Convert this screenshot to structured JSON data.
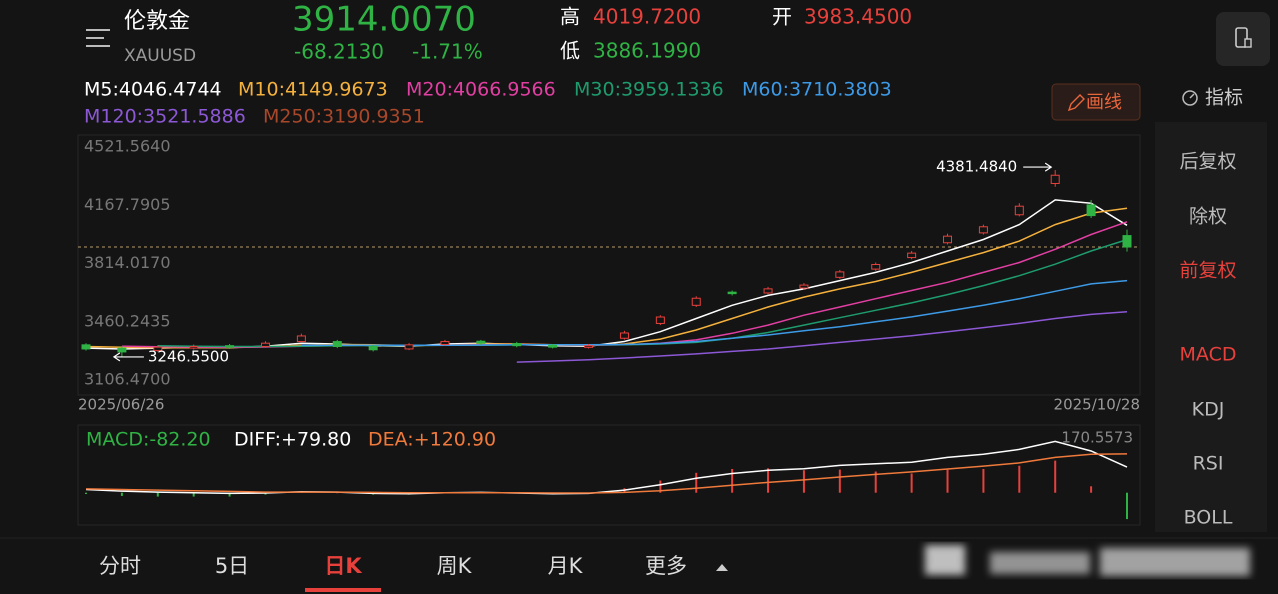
{
  "header": {
    "name": "伦敦金",
    "symbol": "XAUUSD",
    "price": {
      "value": 3914.007,
      "label": "3914.0070"
    },
    "change": "-68.2130",
    "change_pct": "-1.71%",
    "high_label": "高",
    "high": "4019.7200",
    "low_label": "低",
    "low": "3886.1990",
    "open_label": "开",
    "open": "3983.4500"
  },
  "ma_legend": [
    {
      "label": "M5:4046.4744",
      "color": "#ffffff",
      "values": [
        3300,
        3295,
        3300,
        3305,
        3303,
        3312,
        3330,
        3325,
        3315,
        3312,
        3325,
        3330,
        3322,
        3315,
        3312,
        3340,
        3400,
        3480,
        3560,
        3620,
        3660,
        3710,
        3760,
        3820,
        3890,
        3960,
        4050,
        4200,
        4180,
        4046
      ]
    },
    {
      "label": "M10:4149.9673",
      "color": "#f5b13d",
      "values": [
        3310,
        3305,
        3302,
        3302,
        3303,
        3308,
        3318,
        3322,
        3320,
        3316,
        3318,
        3325,
        3326,
        3320,
        3316,
        3325,
        3355,
        3410,
        3480,
        3550,
        3610,
        3660,
        3705,
        3760,
        3820,
        3880,
        3950,
        4050,
        4120,
        4150
      ]
    },
    {
      "label": "M20:4066.9566",
      "color": "#e23fa3",
      "values": [
        null,
        3312,
        3308,
        3306,
        3305,
        3307,
        3312,
        3316,
        3318,
        3318,
        3318,
        3320,
        3322,
        3321,
        3318,
        3320,
        3330,
        3350,
        3390,
        3440,
        3500,
        3550,
        3600,
        3650,
        3700,
        3760,
        3820,
        3900,
        3990,
        4067
      ]
    },
    {
      "label": "M30:3959.1336",
      "color": "#1e9c6e",
      "values": [
        null,
        null,
        3315,
        3312,
        3310,
        3310,
        3312,
        3314,
        3316,
        3316,
        3317,
        3318,
        3320,
        3320,
        3319,
        3320,
        3325,
        3335,
        3360,
        3395,
        3440,
        3485,
        3530,
        3575,
        3625,
        3680,
        3740,
        3810,
        3890,
        3959
      ]
    },
    {
      "label": "M60:3710.3803",
      "color": "#3d9ae6",
      "values": [
        null,
        null,
        null,
        null,
        null,
        null,
        3318,
        3318,
        3318,
        3318,
        3318,
        3319,
        3320,
        3320,
        3320,
        3322,
        3328,
        3340,
        3360,
        3380,
        3405,
        3430,
        3460,
        3490,
        3525,
        3560,
        3600,
        3645,
        3690,
        3710
      ]
    },
    {
      "label": "M120:3521.5886",
      "color": "#8c58d6",
      "values": [
        null,
        null,
        null,
        null,
        null,
        null,
        null,
        null,
        null,
        null,
        null,
        null,
        3215,
        3222,
        3230,
        3240,
        3252,
        3265,
        3280,
        3295,
        3315,
        3335,
        3355,
        3375,
        3400,
        3425,
        3450,
        3480,
        3505,
        3521
      ]
    },
    {
      "label": "M250:3190.9351",
      "color": "#a8472a"
    }
  ],
  "draw_button": "画线",
  "indicator_button": "指标",
  "price_chart": {
    "ylim": [
      3106.47,
      4521.564
    ],
    "yticks": [
      {
        "value": 4521.564,
        "label": "4521.5640"
      },
      {
        "value": 4167.7905,
        "label": "4167.7905"
      },
      {
        "value": 3814.017,
        "label": "3814.0170"
      },
      {
        "value": 3460.2435,
        "label": "3460.2435"
      },
      {
        "value": 3106.47,
        "label": "3106.4700"
      }
    ],
    "start_date": "2025/06/26",
    "end_date": "2025/10/28",
    "up_color": "#e8413c",
    "down_color": "#2fb344",
    "open": [
      3320,
      3300,
      3285,
      3300,
      3315,
      3310,
      3340,
      3340,
      3312,
      3295,
      3322,
      3342,
      3328,
      3318,
      3305,
      3360,
      3450,
      3560,
      3640,
      3635,
      3665,
      3730,
      3780,
      3850,
      3940,
      4000,
      4110,
      4300,
      4170,
      3983.45
    ],
    "close": [
      3295,
      3277,
      3306,
      3310,
      3305,
      3330,
      3374,
      3310,
      3290,
      3320,
      3340,
      3330,
      3315,
      3306,
      3315,
      3392,
      3489,
      3603,
      3631,
      3660,
      3683,
      3763,
      3808,
      3877,
      3980,
      4037,
      4162,
      4350,
      4105,
      3914.007
    ],
    "high": [
      3330,
      3312,
      3318,
      3322,
      3325,
      3342,
      3388,
      3350,
      3322,
      3330,
      3350,
      3350,
      3338,
      3325,
      3325,
      3405,
      3500,
      3615,
      3650,
      3672,
      3695,
      3775,
      3820,
      3890,
      3995,
      4050,
      4180,
      4381.484,
      4200,
      4019.72
    ],
    "low": [
      3285,
      3246.55,
      3278,
      3292,
      3295,
      3302,
      3332,
      3300,
      3280,
      3288,
      3315,
      3320,
      3305,
      3298,
      3298,
      3352,
      3440,
      3550,
      3620,
      3628,
      3655,
      3720,
      3770,
      3840,
      3930,
      3990,
      4100,
      4280,
      4090,
      3886.199
    ],
    "max_label": "4381.4840",
    "max_index": 27,
    "min_label": "3246.5500",
    "min_index": 1
  },
  "macd": {
    "legend": [
      {
        "label": "MACD:-82.20",
        "color": "#2fb344"
      },
      {
        "label": "DIFF:+79.80",
        "color": "#ffffff"
      },
      {
        "label": "DEA:+120.90",
        "color": "#f07a3c"
      }
    ],
    "ylim": [
      -110,
      170.5573
    ],
    "top_tick": {
      "value": 170.5573,
      "label": "170.5573"
    },
    "diff": [
      10,
      5,
      2,
      0,
      -2,
      -1,
      3,
      2,
      -2,
      -3,
      0,
      1,
      -1,
      -3,
      -2,
      8,
      25,
      45,
      60,
      70,
      75,
      85,
      90,
      95,
      110,
      120,
      135,
      160,
      130,
      79.8
    ],
    "dea": [
      12,
      10,
      8,
      6,
      4,
      2,
      2,
      2,
      1,
      0,
      0,
      0,
      0,
      -1,
      -1,
      1,
      6,
      14,
      23,
      32,
      40,
      49,
      57,
      65,
      74,
      83,
      93,
      110,
      120,
      120.9
    ],
    "hist": [
      -4,
      -10,
      -12,
      -12,
      -12,
      -6,
      2,
      0,
      -6,
      -6,
      0,
      2,
      -2,
      -4,
      -2,
      14,
      38,
      62,
      74,
      76,
      70,
      72,
      66,
      60,
      72,
      74,
      84,
      100,
      20,
      -82.2
    ]
  },
  "side_menu": [
    {
      "label": "后复权",
      "active": false
    },
    {
      "label": "除权",
      "active": false
    },
    {
      "label": "前复权",
      "active": true
    },
    {
      "label": "MACD",
      "active": true
    },
    {
      "label": "KDJ",
      "active": false
    },
    {
      "label": "RSI",
      "active": false
    },
    {
      "label": "BOLL",
      "active": false
    }
  ],
  "tabs": [
    "分时",
    "5日",
    "日K",
    "周K",
    "月K",
    "更多"
  ],
  "active_tab": 2
}
